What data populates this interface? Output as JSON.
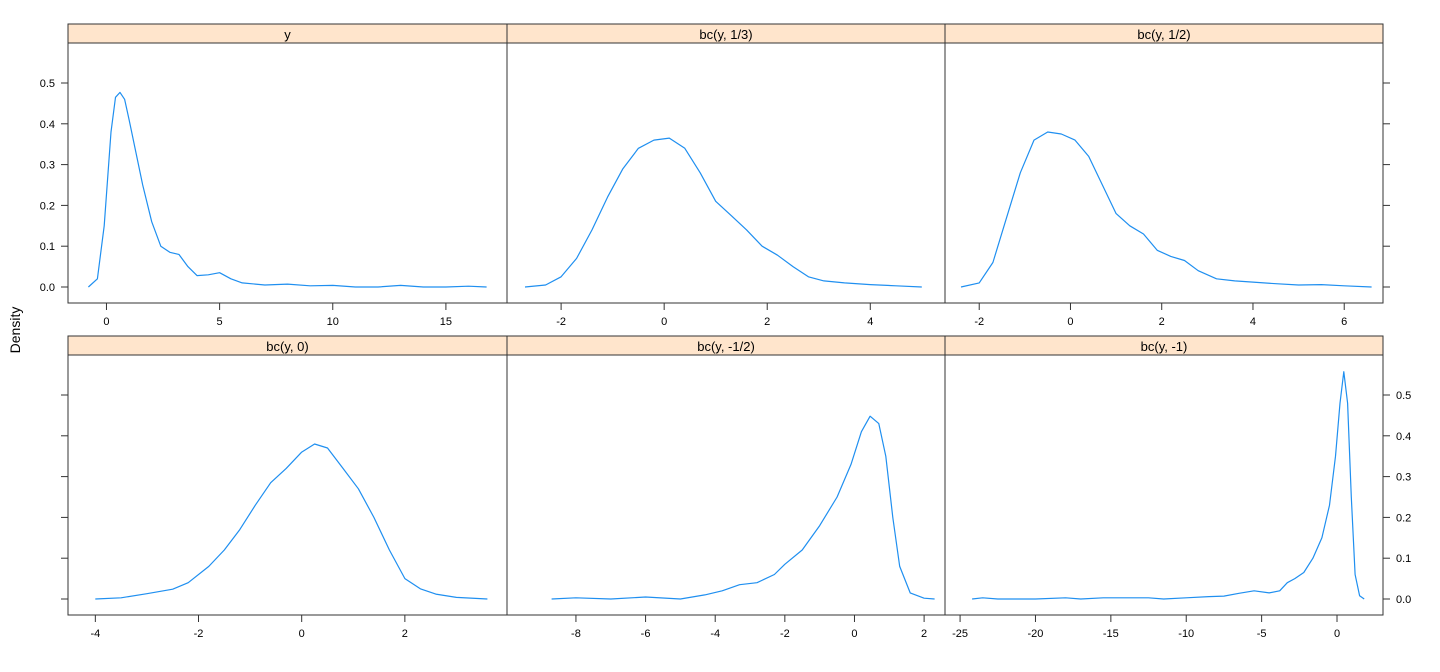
{
  "chart_data": {
    "type": "line",
    "title": "",
    "ylabel": "Density",
    "xlabel": "",
    "layout": {
      "columns": 3,
      "rows": 2
    },
    "line_color": "#1f8ff0",
    "strip_color": "#ffe5cc",
    "ylim": [
      -0.03,
      0.6
    ],
    "yticks": [
      0.0,
      0.1,
      0.2,
      0.3,
      0.4,
      0.5
    ],
    "ytick_labels": [
      "0.0",
      "0.1",
      "0.2",
      "0.3",
      "0.4",
      "0.5"
    ],
    "panels": [
      {
        "name": "y",
        "label": "y",
        "xticks": [
          0,
          5,
          10,
          15
        ],
        "xtick_labels": [
          "0",
          "5",
          "10",
          "15"
        ],
        "xlim": [
          -1.7,
          17.7
        ],
        "x": [
          -0.8,
          -0.4,
          -0.1,
          0.2,
          0.4,
          0.6,
          0.8,
          1.0,
          1.3,
          1.6,
          2.0,
          2.4,
          2.8,
          3.2,
          3.6,
          4.0,
          4.5,
          5.0,
          5.5,
          6.0,
          7.0,
          8.0,
          9.0,
          10.0,
          11.0,
          12.0,
          13.0,
          14.0,
          15.0,
          16.0,
          16.8
        ],
        "y": [
          0.0,
          0.02,
          0.15,
          0.38,
          0.465,
          0.477,
          0.46,
          0.41,
          0.33,
          0.25,
          0.16,
          0.1,
          0.085,
          0.08,
          0.05,
          0.028,
          0.03,
          0.035,
          0.02,
          0.01,
          0.005,
          0.007,
          0.003,
          0.004,
          0.0,
          0.0,
          0.004,
          0.0,
          0.0,
          0.002,
          0.0
        ]
      },
      {
        "name": "bc-1-3",
        "label": "bc(y, 1/3)",
        "xticks": [
          -2,
          0,
          2,
          4
        ],
        "xtick_labels": [
          "-2",
          "0",
          "2",
          "4"
        ],
        "xlim": [
          -3.05,
          5.45
        ],
        "x": [
          -2.7,
          -2.3,
          -2.0,
          -1.7,
          -1.4,
          -1.1,
          -0.8,
          -0.5,
          -0.2,
          0.1,
          0.4,
          0.7,
          1.0,
          1.3,
          1.6,
          1.9,
          2.2,
          2.5,
          2.8,
          3.1,
          3.5,
          4.0,
          4.5,
          5.0
        ],
        "y": [
          0.0,
          0.005,
          0.025,
          0.07,
          0.14,
          0.22,
          0.29,
          0.34,
          0.36,
          0.365,
          0.34,
          0.28,
          0.21,
          0.175,
          0.14,
          0.1,
          0.078,
          0.05,
          0.025,
          0.015,
          0.01,
          0.006,
          0.003,
          0.0
        ]
      },
      {
        "name": "bc-1-2",
        "label": "bc(y, 1/2)",
        "xticks": [
          -2,
          0,
          2,
          4,
          6
        ],
        "xtick_labels": [
          "-2",
          "0",
          "2",
          "4",
          "6"
        ],
        "xlim": [
          -2.75,
          6.85
        ],
        "x": [
          -2.4,
          -2.0,
          -1.7,
          -1.4,
          -1.1,
          -0.8,
          -0.5,
          -0.2,
          0.1,
          0.4,
          0.7,
          1.0,
          1.3,
          1.6,
          1.9,
          2.2,
          2.5,
          2.8,
          3.2,
          3.6,
          4.0,
          4.5,
          5.0,
          5.5,
          6.0,
          6.6
        ],
        "y": [
          0.0,
          0.01,
          0.06,
          0.17,
          0.28,
          0.36,
          0.38,
          0.375,
          0.36,
          0.32,
          0.25,
          0.18,
          0.15,
          0.13,
          0.09,
          0.075,
          0.065,
          0.04,
          0.02,
          0.015,
          0.012,
          0.008,
          0.005,
          0.006,
          0.003,
          0.0
        ]
      },
      {
        "name": "bc-0",
        "label": "bc(y, 0)",
        "xticks": [
          -4,
          -2,
          0,
          2
        ],
        "xtick_labels": [
          "-4",
          "-2",
          "0",
          "2"
        ],
        "xlim": [
          -4.53,
          3.98
        ],
        "x": [
          -4.0,
          -3.5,
          -3.0,
          -2.5,
          -2.2,
          -1.8,
          -1.5,
          -1.2,
          -0.9,
          -0.6,
          -0.3,
          0.0,
          0.25,
          0.5,
          0.8,
          1.1,
          1.4,
          1.7,
          2.0,
          2.3,
          2.6,
          3.0,
          3.6
        ],
        "y": [
          0.0,
          0.003,
          0.013,
          0.024,
          0.04,
          0.08,
          0.12,
          0.17,
          0.23,
          0.285,
          0.32,
          0.36,
          0.38,
          0.37,
          0.32,
          0.27,
          0.2,
          0.12,
          0.05,
          0.025,
          0.012,
          0.004,
          0.0
        ]
      },
      {
        "name": "bc-neg-1-2",
        "label": "bc(y, -1/2)",
        "xticks": [
          -8,
          -6,
          -4,
          -2,
          0,
          2
        ],
        "xtick_labels": [
          "-8",
          "-6",
          "-4",
          "-2",
          "0",
          "2"
        ],
        "xlim": [
          -9.98,
          2.6
        ],
        "x": [
          -8.7,
          -8.0,
          -7.0,
          -6.0,
          -5.0,
          -4.3,
          -3.8,
          -3.3,
          -2.8,
          -2.3,
          -2.0,
          -1.5,
          -1.0,
          -0.5,
          -0.1,
          0.2,
          0.45,
          0.7,
          0.9,
          1.1,
          1.3,
          1.6,
          2.0,
          2.3
        ],
        "y": [
          0.0,
          0.003,
          0.0,
          0.005,
          0.0,
          0.01,
          0.02,
          0.035,
          0.04,
          0.06,
          0.085,
          0.12,
          0.18,
          0.25,
          0.33,
          0.41,
          0.448,
          0.43,
          0.35,
          0.2,
          0.08,
          0.015,
          0.002,
          0.0
        ]
      },
      {
        "name": "bc-neg-1",
        "label": "bc(y, -1)",
        "xticks": [
          -25,
          -20,
          -15,
          -10,
          -5,
          0
        ],
        "xtick_labels": [
          "-25",
          "-20",
          "-15",
          "-10",
          "-5",
          "0"
        ],
        "xlim": [
          -26.0,
          3.05
        ],
        "x": [
          -24.2,
          -23.5,
          -22.5,
          -20.0,
          -18.0,
          -17.0,
          -15.5,
          -14.0,
          -12.5,
          -11.5,
          -10.0,
          -8.5,
          -7.5,
          -6.5,
          -5.5,
          -4.5,
          -3.8,
          -3.3,
          -2.8,
          -2.2,
          -1.6,
          -1.0,
          -0.5,
          -0.1,
          0.2,
          0.45,
          0.7,
          0.95,
          1.2,
          1.5,
          1.8
        ],
        "y": [
          0.0,
          0.003,
          0.0,
          0.0,
          0.003,
          0.0,
          0.003,
          0.003,
          0.003,
          0.0,
          0.003,
          0.006,
          0.007,
          0.014,
          0.02,
          0.015,
          0.02,
          0.04,
          0.05,
          0.065,
          0.1,
          0.15,
          0.23,
          0.35,
          0.48,
          0.557,
          0.48,
          0.25,
          0.06,
          0.008,
          0.0
        ]
      }
    ]
  }
}
